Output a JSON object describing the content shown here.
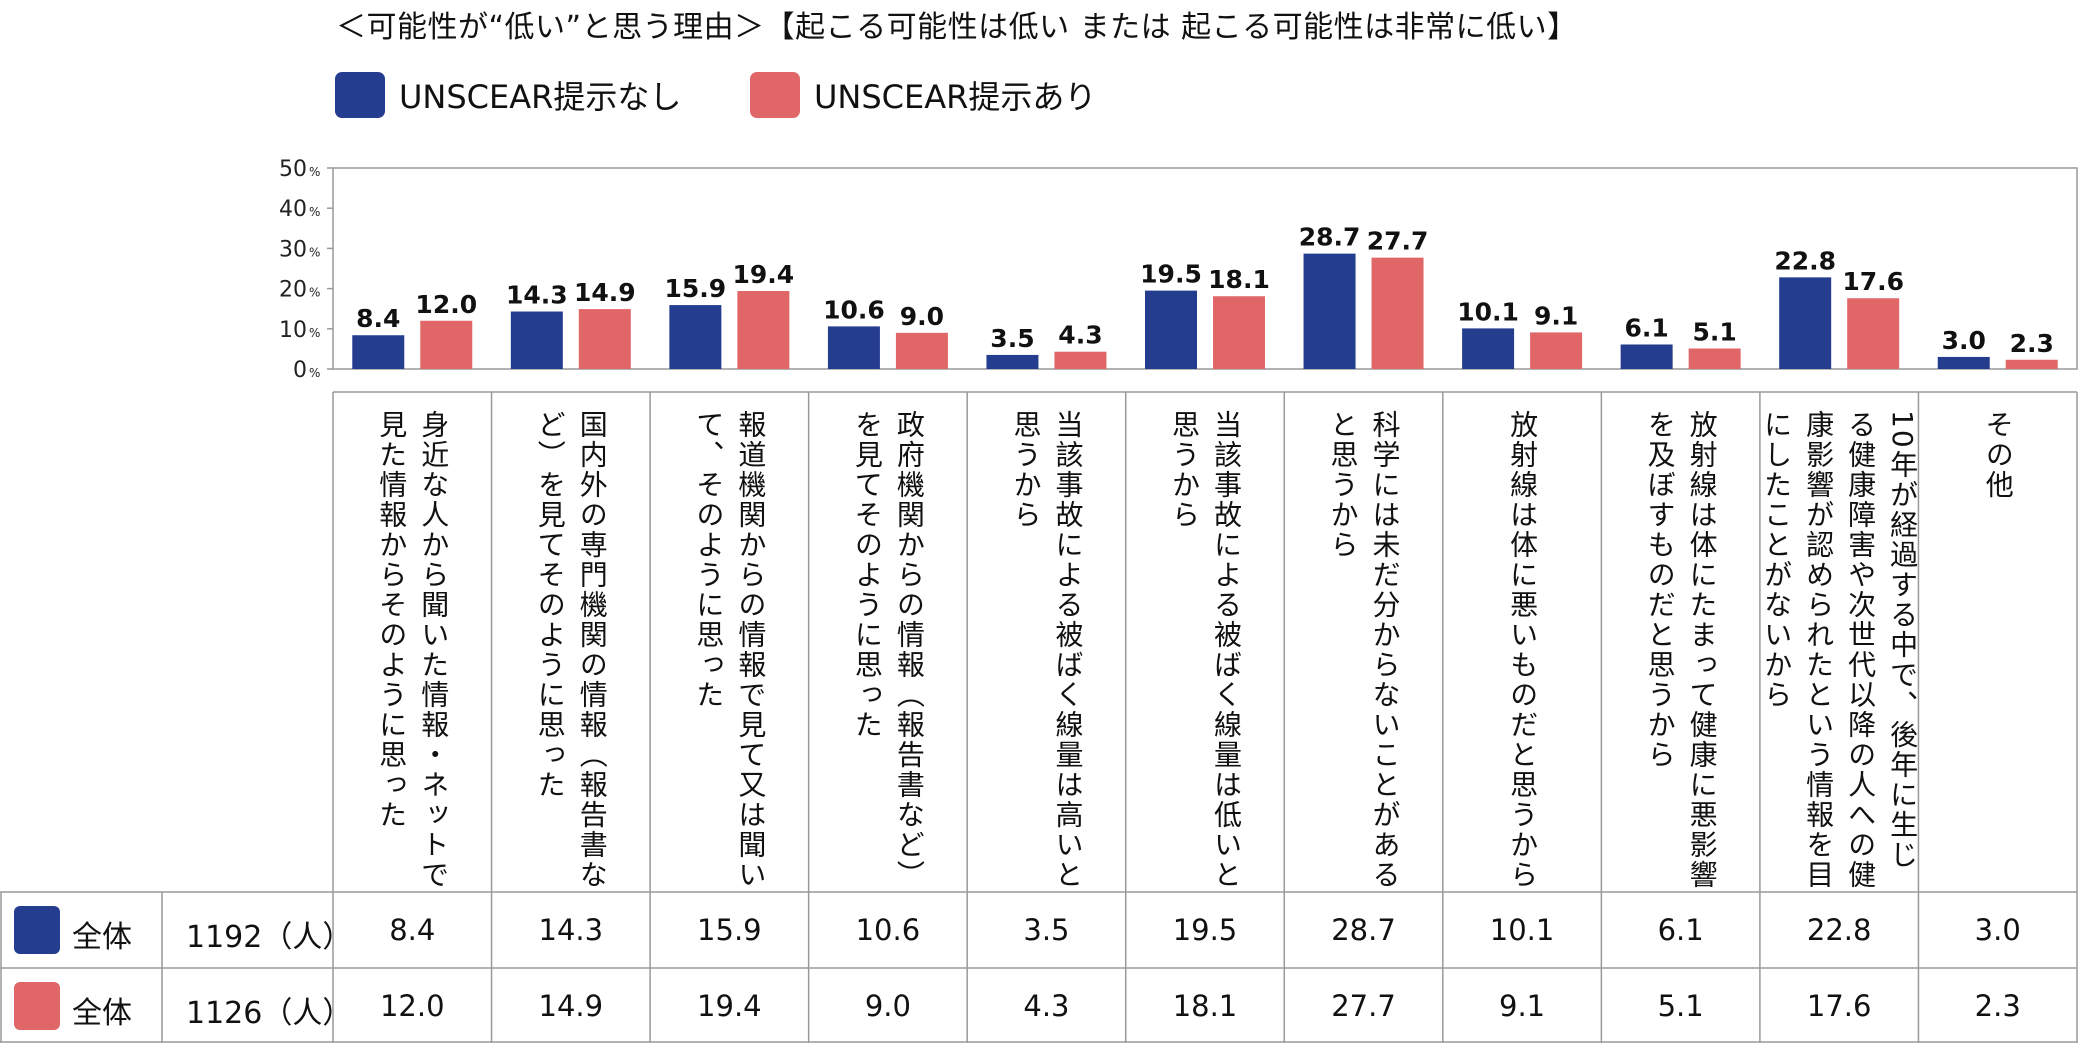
{
  "title": "＜可能性が“低い”と思う理由＞【起こる可能性は低い または 起こる可能性は非常に低い】",
  "colors": {
    "series1": "#253d8f",
    "series2": "#e06668"
  },
  "chart_data": {
    "type": "bar",
    "categories": [
      "身近な人から聞いた情報・ネットで見た情報からそのように思った",
      "国内外の専門機関の情報（報告書など）を見てそのように思った",
      "報道機関からの情報で見て又は聞いて、そのように思った",
      "政府機関からの情報（報告書など）を見てそのように思った",
      "当該事故による被ばく線量は高いと思うから",
      "当該事故による被ばく線量は低いと思うから",
      "科学には未だ分からないことがあると思うから",
      "放射線は体に悪いものだと思うから",
      "放射線は体にたまって健康に悪影響を及ぼすものだと思うから",
      "10年が経過する中で、後年に生じる健康障害や次世代以降の人への健康影響が認められたという情報を目にしたことがないから",
      "その他"
    ],
    "series": [
      {
        "name": "UNSCEAR提示なし",
        "values": [
          8.4,
          14.3,
          15.9,
          10.6,
          3.5,
          19.5,
          28.7,
          10.1,
          6.1,
          22.8,
          3.0
        ]
      },
      {
        "name": "UNSCEAR提示あり",
        "values": [
          12.0,
          14.9,
          19.4,
          9.0,
          4.3,
          18.1,
          27.7,
          9.1,
          5.1,
          17.6,
          2.3
        ]
      }
    ],
    "y_ticks": [
      "0",
      "10",
      "20",
      "30",
      "40",
      "50"
    ],
    "y_unit": "%",
    "ylim": [
      0,
      50
    ],
    "value_labels": [
      [
        "8.4",
        "14.3",
        "15.9",
        "10.6",
        "3.5",
        "19.5",
        "28.7",
        "10.1",
        "6.1",
        "22.8",
        "3.0"
      ],
      [
        "12.0",
        "14.9",
        "19.4",
        "9.0",
        "4.3",
        "18.1",
        "27.7",
        "9.1",
        "5.1",
        "17.6",
        "2.3"
      ]
    ],
    "legend_position": "top-left",
    "grid": false
  },
  "table": {
    "rows": [
      {
        "label": "全体",
        "n": "1192",
        "unit": "（人）"
      },
      {
        "label": "全体",
        "n": "1126",
        "unit": "（人）"
      }
    ]
  }
}
